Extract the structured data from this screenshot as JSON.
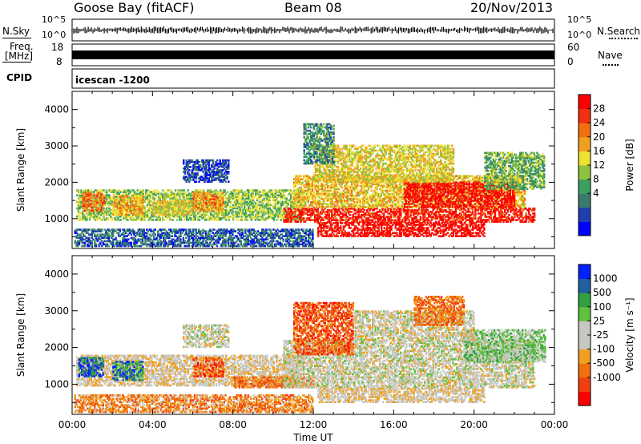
{
  "header": {
    "radar": "Goose Bay (fitACF)",
    "beam": "Beam 08",
    "date": "20/Nov/2013"
  },
  "panels": {
    "nsky_label": "N.Sky",
    "nsky_ticks": [
      "10^5",
      "10^0"
    ],
    "nsearch_label": "N.Search",
    "nsearch_ticks": [
      "10^5",
      "10^0"
    ],
    "freq_label_line1": "Freq.",
    "freq_label_line2": "[MHz]",
    "freq_ticks": [
      "18",
      "8"
    ],
    "nave_label": "Nave",
    "nave_ticks": [
      "60",
      "0"
    ],
    "cpid_label": "CPID",
    "cpid_value": "icescan -1200"
  },
  "chart_data": [
    {
      "type": "heatmap",
      "name": "power",
      "ylabel": "Slant Range [km]",
      "yticks": [
        1000,
        2000,
        3000,
        4000
      ],
      "ylim": [
        180,
        4500
      ],
      "xlim": [
        0,
        24
      ],
      "colorbar_label": "Power [dB]",
      "colorbar_ticks": [
        "28",
        "24",
        "20",
        "16",
        "12",
        "8",
        "4"
      ],
      "colors": [
        "#0000ff",
        "#1f3fb0",
        "#3a7a6a",
        "#3aa060",
        "#90c040",
        "#f0e030",
        "#f0a020",
        "#f07010",
        "#f03010",
        "#ff0000"
      ],
      "regions": [
        {
          "t0": 0.2,
          "t1": 11.5,
          "r0": 950,
          "r1": 1800,
          "level": 0.45
        },
        {
          "t0": 0.5,
          "t1": 1.6,
          "r0": 1200,
          "r1": 1700,
          "level": 0.75
        },
        {
          "t0": 2.0,
          "t1": 3.5,
          "r0": 1100,
          "r1": 1600,
          "level": 0.65
        },
        {
          "t0": 4.0,
          "t1": 6.0,
          "r0": 1100,
          "r1": 1500,
          "level": 0.55
        },
        {
          "t0": 6.0,
          "t1": 7.5,
          "r0": 1200,
          "r1": 1700,
          "level": 0.7
        },
        {
          "t0": 0.1,
          "t1": 12.0,
          "r0": 230,
          "r1": 700,
          "level": 0.2
        },
        {
          "t0": 5.5,
          "t1": 7.8,
          "r0": 2000,
          "r1": 2600,
          "level": 0.15
        },
        {
          "t0": 10.5,
          "t1": 23.0,
          "r0": 900,
          "r1": 1300,
          "level": 0.9
        },
        {
          "t0": 12.2,
          "t1": 20.5,
          "r0": 500,
          "r1": 900,
          "level": 0.95
        },
        {
          "t0": 11.0,
          "t1": 22.5,
          "r0": 1300,
          "r1": 2200,
          "level": 0.6
        },
        {
          "t0": 16.5,
          "t1": 22.0,
          "r0": 1300,
          "r1": 2000,
          "level": 0.95
        },
        {
          "t0": 12.0,
          "t1": 19.0,
          "r0": 2000,
          "r1": 3000,
          "level": 0.55
        },
        {
          "t0": 20.5,
          "t1": 23.5,
          "r0": 1800,
          "r1": 2800,
          "level": 0.4
        },
        {
          "t0": 11.5,
          "t1": 13.0,
          "r0": 2500,
          "r1": 3600,
          "level": 0.3
        }
      ]
    },
    {
      "type": "heatmap",
      "name": "velocity",
      "ylabel": "Slant Range [km]",
      "xlabel": "Time UT",
      "yticks": [
        1000,
        2000,
        3000,
        4000
      ],
      "ylim": [
        180,
        4500
      ],
      "xlim": [
        0,
        24
      ],
      "xticks": [
        "00:00",
        "04:00",
        "08:00",
        "12:00",
        "16:00",
        "20:00",
        "00:00"
      ],
      "colorbar_label": "Velocity [m s⁻¹]",
      "colorbar_ticks": [
        "1000",
        "500",
        "100",
        "25",
        "-25",
        "-100",
        "-500",
        "-1000"
      ],
      "colors": [
        "#ff0000",
        "#f04010",
        "#f07010",
        "#f0a020",
        "#c8c8c0",
        "#c8c8c0",
        "#60c040",
        "#30a040",
        "#2060a0",
        "#0020ff"
      ],
      "regions": [
        {
          "t0": 0.2,
          "t1": 11.5,
          "r0": 950,
          "r1": 1800,
          "level": 0.45
        },
        {
          "t0": 0.3,
          "t1": 1.5,
          "r0": 1200,
          "r1": 1700,
          "level": 0.85
        },
        {
          "t0": 2.0,
          "t1": 3.5,
          "r0": 1100,
          "r1": 1600,
          "level": 0.8
        },
        {
          "t0": 6.0,
          "t1": 7.5,
          "r0": 1200,
          "r1": 1700,
          "level": 0.2
        },
        {
          "t0": 8.0,
          "t1": 12.0,
          "r0": 900,
          "r1": 1200,
          "level": 0.25
        },
        {
          "t0": 0.1,
          "t1": 12.0,
          "r0": 230,
          "r1": 700,
          "level": 0.3
        },
        {
          "t0": 5.5,
          "t1": 7.8,
          "r0": 2000,
          "r1": 2600,
          "level": 0.5
        },
        {
          "t0": 10.5,
          "t1": 23.0,
          "r0": 900,
          "r1": 2200,
          "level": 0.5
        },
        {
          "t0": 12.2,
          "t1": 20.5,
          "r0": 500,
          "r1": 900,
          "level": 0.45
        },
        {
          "t0": 11.0,
          "t1": 14.0,
          "r0": 1800,
          "r1": 3200,
          "level": 0.2
        },
        {
          "t0": 19.5,
          "t1": 23.5,
          "r0": 1600,
          "r1": 2500,
          "level": 0.62
        },
        {
          "t0": 14.0,
          "t1": 20.0,
          "r0": 2200,
          "r1": 3000,
          "level": 0.48
        },
        {
          "t0": 17.0,
          "t1": 19.5,
          "r0": 2600,
          "r1": 3400,
          "level": 0.25
        }
      ]
    }
  ]
}
